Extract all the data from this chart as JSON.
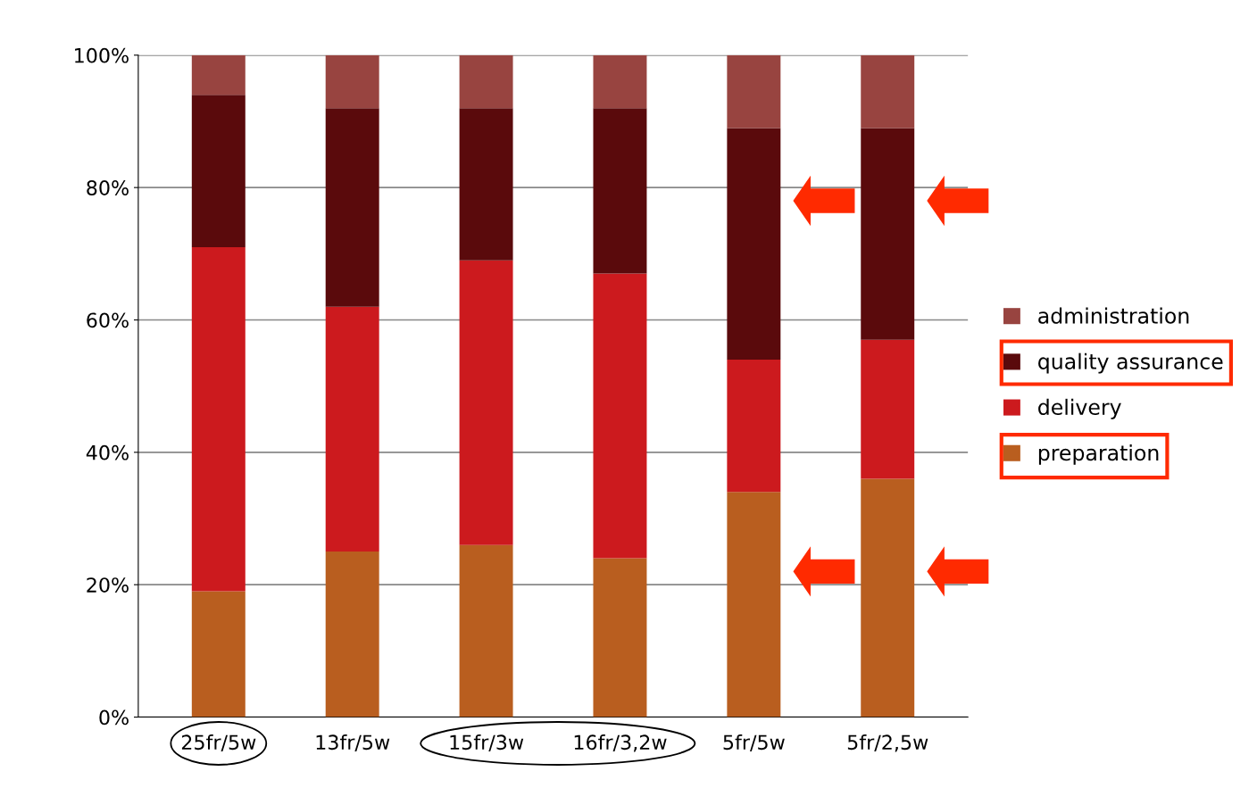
{
  "chart_data": {
    "type": "bar",
    "stacked": true,
    "categories": [
      "25fr/5w",
      "13fr/5w",
      "15fr/3w",
      "16fr/3,2w",
      "5fr/5w",
      "5fr/2,5w"
    ],
    "series": [
      {
        "name": "preparation",
        "color": "#b95e1f",
        "values": [
          19,
          25,
          26,
          24,
          34,
          36
        ]
      },
      {
        "name": "delivery",
        "color": "#cc1a1e",
        "values": [
          52,
          37,
          43,
          43,
          20,
          21
        ]
      },
      {
        "name": "quality assurance",
        "color": "#5a0a0c",
        "values": [
          23,
          30,
          23,
          25,
          35,
          32
        ]
      },
      {
        "name": "administration",
        "color": "#984440",
        "values": [
          6,
          8,
          8,
          8,
          11,
          11
        ]
      }
    ],
    "ylim": [
      0,
      100
    ],
    "yticks": [
      {
        "value": 0,
        "label": "0%"
      },
      {
        "value": 20,
        "label": "20%"
      },
      {
        "value": 40,
        "label": "40%"
      },
      {
        "value": 60,
        "label": "60%"
      },
      {
        "value": 80,
        "label": "80%"
      },
      {
        "value": 100,
        "label": "100%"
      }
    ],
    "grid": "y",
    "legend": "right"
  }
}
